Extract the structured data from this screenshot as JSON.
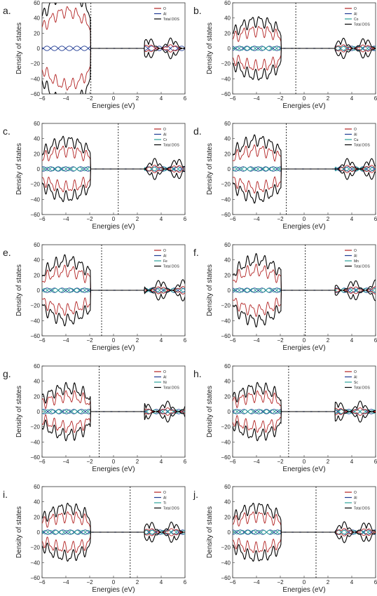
{
  "chart_data": [
    {
      "panel": "a.",
      "type": "line",
      "xlabel": "Energies (eV)",
      "ylabel": "Density of states",
      "xlim": [
        -6,
        6
      ],
      "ylim": [
        -60,
        60
      ],
      "xticks": [
        "−6",
        "−4",
        "−2",
        "0",
        "2",
        "4",
        "6"
      ],
      "yticks": [
        "−60",
        "−40",
        "−20",
        "0",
        "20",
        "40",
        "60"
      ],
      "series": [
        {
          "name": "O",
          "color": "#b22222"
        },
        {
          "name": "Al",
          "color": "#1f3a93"
        },
        {
          "name": "Total DOS",
          "color": "#000000"
        }
      ],
      "fermi_level": -1.9,
      "dopant": ""
    },
    {
      "panel": "b.",
      "type": "line",
      "xlabel": "Energies (eV)",
      "ylabel": "Density of states",
      "xlim": [
        -6,
        6
      ],
      "ylim": [
        -60,
        60
      ],
      "xticks": [
        "−6",
        "−4",
        "−2",
        "0",
        "2",
        "4",
        "6"
      ],
      "yticks": [
        "−60",
        "−40",
        "−20",
        "0",
        "20",
        "40",
        "60"
      ],
      "series": [
        {
          "name": "O",
          "color": "#b22222"
        },
        {
          "name": "Al",
          "color": "#1f3a93"
        },
        {
          "name": "Co",
          "color": "#2aa198"
        },
        {
          "name": "Total DOS",
          "color": "#000000"
        }
      ],
      "fermi_level": -0.7,
      "dopant": "Co"
    },
    {
      "panel": "c.",
      "type": "line",
      "xlabel": "Energies (eV)",
      "ylabel": "Density of states",
      "xlim": [
        -6,
        6
      ],
      "ylim": [
        -60,
        60
      ],
      "xticks": [
        "−6",
        "−4",
        "−2",
        "0",
        "2",
        "4",
        "6"
      ],
      "yticks": [
        "−60",
        "−40",
        "−20",
        "0",
        "20",
        "40",
        "60"
      ],
      "series": [
        {
          "name": "O",
          "color": "#b22222"
        },
        {
          "name": "Al",
          "color": "#1f3a93"
        },
        {
          "name": "Cr",
          "color": "#2aa198"
        },
        {
          "name": "Total DOS",
          "color": "#000000"
        }
      ],
      "fermi_level": 0.4,
      "dopant": "Cr"
    },
    {
      "panel": "d.",
      "type": "line",
      "xlabel": "Energies (eV)",
      "ylabel": "Density of states",
      "xlim": [
        -6,
        6
      ],
      "ylim": [
        -60,
        60
      ],
      "xticks": [
        "−6",
        "−4",
        "−2",
        "0",
        "2",
        "4",
        "6"
      ],
      "yticks": [
        "−60",
        "−40",
        "−20",
        "0",
        "20",
        "40",
        "60"
      ],
      "series": [
        {
          "name": "O",
          "color": "#b22222"
        },
        {
          "name": "Al",
          "color": "#1f3a93"
        },
        {
          "name": "Cu",
          "color": "#2aa198"
        },
        {
          "name": "Total DOS",
          "color": "#000000"
        }
      ],
      "fermi_level": -1.5,
      "dopant": "Cu"
    },
    {
      "panel": "e.",
      "type": "line",
      "xlabel": "Energies (eV)",
      "ylabel": "Density of states",
      "xlim": [
        -6,
        6
      ],
      "ylim": [
        -60,
        60
      ],
      "xticks": [
        "−6",
        "−4",
        "−2",
        "0",
        "2",
        "4",
        "6"
      ],
      "yticks": [
        "−60",
        "−40",
        "−20",
        "0",
        "20",
        "40",
        "60"
      ],
      "series": [
        {
          "name": "O",
          "color": "#b22222"
        },
        {
          "name": "Al",
          "color": "#1f3a93"
        },
        {
          "name": "Fe",
          "color": "#2aa198"
        },
        {
          "name": "Total DOS",
          "color": "#000000"
        }
      ],
      "fermi_level": -1.0,
      "dopant": "Fe"
    },
    {
      "panel": "f.",
      "type": "line",
      "xlabel": "Energies (eV)",
      "ylabel": "Density of states",
      "xlim": [
        -6,
        6
      ],
      "ylim": [
        -60,
        60
      ],
      "xticks": [
        "−6",
        "−4",
        "−2",
        "0",
        "2",
        "4",
        "6"
      ],
      "yticks": [
        "−60",
        "−40",
        "−20",
        "0",
        "20",
        "40",
        "60"
      ],
      "series": [
        {
          "name": "O",
          "color": "#b22222"
        },
        {
          "name": "Al",
          "color": "#1f3a93"
        },
        {
          "name": "Mn",
          "color": "#2aa198"
        },
        {
          "name": "Total DOS",
          "color": "#000000"
        }
      ],
      "fermi_level": 0.1,
      "dopant": "Mn"
    },
    {
      "panel": "g.",
      "type": "line",
      "xlabel": "Energies (eV)",
      "ylabel": "Density of states",
      "xlim": [
        -6,
        6
      ],
      "ylim": [
        -60,
        60
      ],
      "xticks": [
        "−6",
        "−4",
        "−2",
        "0",
        "2",
        "4",
        "6"
      ],
      "yticks": [
        "−60",
        "−40",
        "−20",
        "0",
        "20",
        "40",
        "60"
      ],
      "series": [
        {
          "name": "O",
          "color": "#b22222"
        },
        {
          "name": "Al",
          "color": "#1f3a93"
        },
        {
          "name": "Ni",
          "color": "#2aa198"
        },
        {
          "name": "Total DOS",
          "color": "#000000"
        }
      ],
      "fermi_level": -1.2,
      "dopant": "Ni"
    },
    {
      "panel": "h.",
      "type": "line",
      "xlabel": "Energies (eV)",
      "ylabel": "Density of states",
      "xlim": [
        -6,
        6
      ],
      "ylim": [
        -60,
        60
      ],
      "xticks": [
        "−6",
        "−4",
        "−2",
        "0",
        "2",
        "4",
        "6"
      ],
      "yticks": [
        "−60",
        "−40",
        "−20",
        "0",
        "20",
        "40",
        "60"
      ],
      "series": [
        {
          "name": "O",
          "color": "#b22222"
        },
        {
          "name": "Al",
          "color": "#1f3a93"
        },
        {
          "name": "Sc",
          "color": "#2aa198"
        },
        {
          "name": "Total DOS",
          "color": "#000000"
        }
      ],
      "fermi_level": -1.3,
      "dopant": "Sc"
    },
    {
      "panel": "i.",
      "type": "line",
      "xlabel": "Energies (eV)",
      "ylabel": "Density of states",
      "xlim": [
        -6,
        6
      ],
      "ylim": [
        -60,
        60
      ],
      "xticks": [
        "−6",
        "−4",
        "−2",
        "0",
        "2",
        "4",
        "6"
      ],
      "yticks": [
        "−60",
        "−40",
        "−20",
        "0",
        "20",
        "40",
        "60"
      ],
      "series": [
        {
          "name": "O",
          "color": "#b22222"
        },
        {
          "name": "Al",
          "color": "#1f3a93"
        },
        {
          "name": "Ti",
          "color": "#2aa198"
        },
        {
          "name": "Total DOS",
          "color": "#000000"
        }
      ],
      "fermi_level": 1.4,
      "dopant": "Ti"
    },
    {
      "panel": "j.",
      "type": "line",
      "xlabel": "Energies (eV)",
      "ylabel": "Density of states",
      "xlim": [
        -6,
        6
      ],
      "ylim": [
        -60,
        60
      ],
      "xticks": [
        "−6",
        "−4",
        "−2",
        "0",
        "2",
        "4",
        "6"
      ],
      "yticks": [
        "−60",
        "−40",
        "−20",
        "0",
        "20",
        "40",
        "60"
      ],
      "series": [
        {
          "name": "O",
          "color": "#b22222"
        },
        {
          "name": "Al",
          "color": "#1f3a93"
        },
        {
          "name": "V",
          "color": "#2aa198"
        },
        {
          "name": "Total DOS",
          "color": "#000000"
        }
      ],
      "fermi_level": 1.0,
      "dopant": "V"
    }
  ]
}
